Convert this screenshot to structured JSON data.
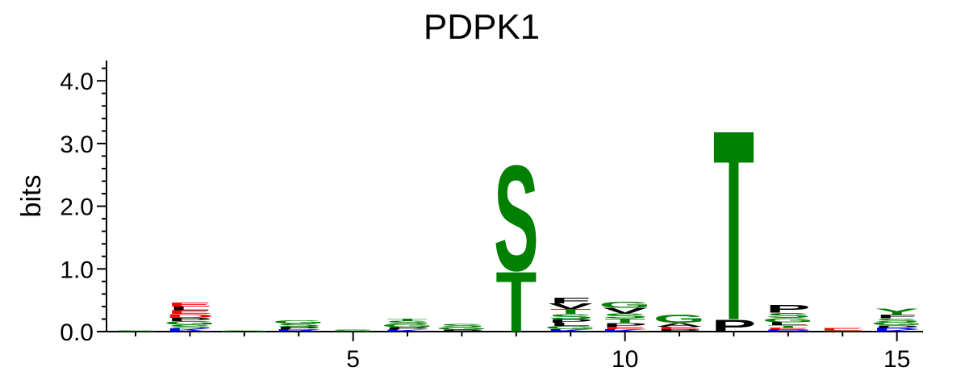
{
  "chart_data": {
    "type": "sequence_logo",
    "title": "PDPK1",
    "ylabel": "bits",
    "ylim": [
      0,
      4.3
    ],
    "yticks": [
      "0.0",
      "1.0",
      "2.0",
      "3.0",
      "4.0"
    ],
    "xticks": [
      "5",
      "10",
      "15"
    ],
    "xlim": [
      0.5,
      15.5
    ],
    "grid": false,
    "colors": {
      "polar": "#008000",
      "hydrophobic": "#000000",
      "acidic": "#ff0000",
      "basic": "#0000ff",
      "neutral": "#800080"
    },
    "positions": [
      {
        "pos": 1,
        "letters": [
          {
            "l": "S",
            "h": 0.02,
            "c": "#008000"
          }
        ]
      },
      {
        "pos": 2,
        "letters": [
          {
            "l": "K",
            "h": 0.05,
            "c": "#0000ff"
          },
          {
            "l": "S",
            "h": 0.06,
            "c": "#008000"
          },
          {
            "l": "G",
            "h": 0.06,
            "c": "#008000"
          },
          {
            "l": "P",
            "h": 0.05,
            "c": "#000000"
          },
          {
            "l": "D",
            "h": 0.06,
            "c": "#ff0000"
          },
          {
            "l": "E",
            "h": 0.06,
            "c": "#ff0000"
          },
          {
            "l": "L",
            "h": 0.06,
            "c": "#000000"
          },
          {
            "l": "E",
            "h": 0.07,
            "c": "#ff0000"
          }
        ]
      },
      {
        "pos": 3,
        "letters": [
          {
            "l": "G",
            "h": 0.02,
            "c": "#008000"
          }
        ]
      },
      {
        "pos": 4,
        "letters": [
          {
            "l": "R",
            "h": 0.04,
            "c": "#0000ff"
          },
          {
            "l": "P",
            "h": 0.04,
            "c": "#000000"
          },
          {
            "l": "S",
            "h": 0.05,
            "c": "#008000"
          },
          {
            "l": "G",
            "h": 0.05,
            "c": "#008000"
          }
        ]
      },
      {
        "pos": 5,
        "letters": [
          {
            "l": "S",
            "h": 0.03,
            "c": "#008000"
          }
        ]
      },
      {
        "pos": 6,
        "letters": [
          {
            "l": "K",
            "h": 0.03,
            "c": "#0000ff"
          },
          {
            "l": "P",
            "h": 0.04,
            "c": "#000000"
          },
          {
            "l": "G",
            "h": 0.05,
            "c": "#008000"
          },
          {
            "l": "S",
            "h": 0.05,
            "c": "#008000"
          },
          {
            "l": "T",
            "h": 0.04,
            "c": "#008000"
          }
        ]
      },
      {
        "pos": 7,
        "letters": [
          {
            "l": "P",
            "h": 0.03,
            "c": "#000000"
          },
          {
            "l": "G",
            "h": 0.04,
            "c": "#008000"
          },
          {
            "l": "S",
            "h": 0.05,
            "c": "#008000"
          }
        ]
      },
      {
        "pos": 8,
        "letters": [
          {
            "l": "T",
            "h": 0.98,
            "c": "#008000"
          },
          {
            "l": "S",
            "h": 1.72,
            "c": "#008000"
          }
        ]
      },
      {
        "pos": 9,
        "letters": [
          {
            "l": "K",
            "h": 0.04,
            "c": "#0000ff"
          },
          {
            "l": "G",
            "h": 0.05,
            "c": "#008000"
          },
          {
            "l": "L",
            "h": 0.05,
            "c": "#000000"
          },
          {
            "l": "P",
            "h": 0.06,
            "c": "#000000"
          },
          {
            "l": "S",
            "h": 0.08,
            "c": "#008000"
          },
          {
            "l": "T",
            "h": 0.08,
            "c": "#008000"
          },
          {
            "l": "V",
            "h": 0.09,
            "c": "#000000"
          },
          {
            "l": "F",
            "h": 0.09,
            "c": "#000000"
          }
        ]
      },
      {
        "pos": 10,
        "letters": [
          {
            "l": "K",
            "h": 0.04,
            "c": "#0000ff"
          },
          {
            "l": "E",
            "h": 0.04,
            "c": "#ff0000"
          },
          {
            "l": "P",
            "h": 0.06,
            "c": "#000000"
          },
          {
            "l": "T",
            "h": 0.07,
            "c": "#008000"
          },
          {
            "l": "S",
            "h": 0.08,
            "c": "#008000"
          },
          {
            "l": "V",
            "h": 0.09,
            "c": "#000000"
          },
          {
            "l": "G",
            "h": 0.1,
            "c": "#008000"
          }
        ]
      },
      {
        "pos": 11,
        "letters": [
          {
            "l": "P",
            "h": 0.04,
            "c": "#000000"
          },
          {
            "l": "E",
            "h": 0.04,
            "c": "#ff0000"
          },
          {
            "l": "A",
            "h": 0.06,
            "c": "#000000"
          },
          {
            "l": "G",
            "h": 0.14,
            "c": "#008000"
          }
        ]
      },
      {
        "pos": 12,
        "letters": [
          {
            "l": "P",
            "h": 0.2,
            "c": "#000000"
          },
          {
            "l": "T",
            "h": 3.1,
            "c": "#008000"
          }
        ]
      },
      {
        "pos": 13,
        "letters": [
          {
            "l": "R",
            "h": 0.03,
            "c": "#0000ff"
          },
          {
            "l": "E",
            "h": 0.03,
            "c": "#ff0000"
          },
          {
            "l": "T",
            "h": 0.04,
            "c": "#008000"
          },
          {
            "l": "L",
            "h": 0.05,
            "c": "#000000"
          },
          {
            "l": "G",
            "h": 0.07,
            "c": "#008000"
          },
          {
            "l": "S",
            "h": 0.08,
            "c": "#008000"
          },
          {
            "l": "P",
            "h": 0.13,
            "c": "#000000"
          }
        ]
      },
      {
        "pos": 14,
        "letters": [
          {
            "l": "S",
            "h": 0.02,
            "c": "#008000"
          },
          {
            "l": "E",
            "h": 0.04,
            "c": "#ff0000"
          }
        ]
      },
      {
        "pos": 15,
        "letters": [
          {
            "l": "K",
            "h": 0.03,
            "c": "#0000ff"
          },
          {
            "l": "R",
            "h": 0.03,
            "c": "#0000ff"
          },
          {
            "l": "P",
            "h": 0.04,
            "c": "#000000"
          },
          {
            "l": "G",
            "h": 0.05,
            "c": "#008000"
          },
          {
            "l": "S",
            "h": 0.06,
            "c": "#008000"
          },
          {
            "l": "F",
            "h": 0.06,
            "c": "#000000"
          },
          {
            "l": "Y",
            "h": 0.1,
            "c": "#008000"
          }
        ]
      }
    ]
  }
}
